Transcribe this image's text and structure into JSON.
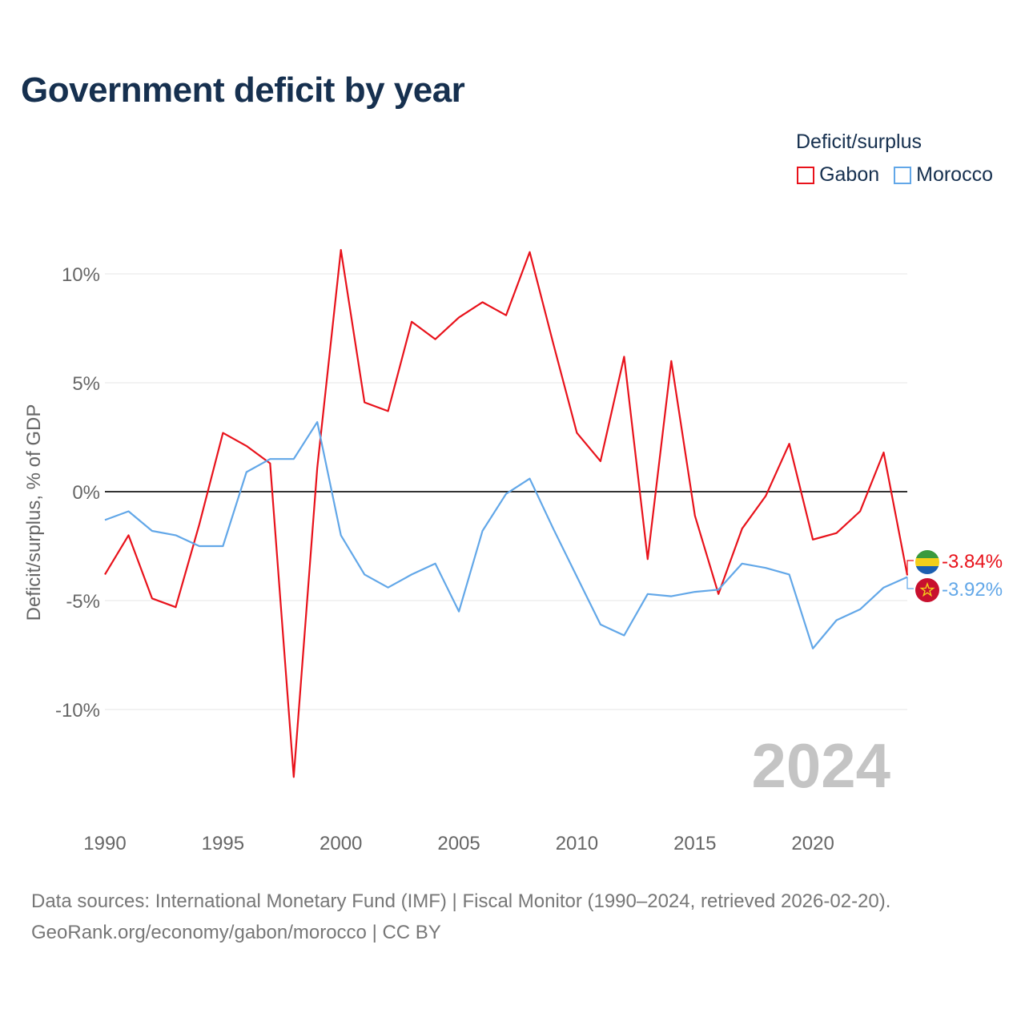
{
  "title": "Government deficit by year",
  "legend": {
    "title": "Deficit/surplus",
    "items": [
      {
        "label": "Gabon",
        "color": "#e8121b"
      },
      {
        "label": "Morocco",
        "color": "#62a7e8"
      }
    ]
  },
  "chart_data": {
    "type": "line",
    "title": "Government deficit by year",
    "xlabel": "",
    "ylabel": "Deficit/surplus, % of GDP",
    "xlim": [
      1990,
      2024
    ],
    "ylim": [
      -15,
      11
    ],
    "y_ticks": [
      10,
      5,
      0,
      -5,
      -10
    ],
    "y_tick_labels": [
      "10%",
      "5%",
      "0%",
      "-5%",
      "-10%"
    ],
    "x_ticks": [
      1990,
      1995,
      2000,
      2005,
      2010,
      2015,
      2020
    ],
    "x_tick_labels": [
      "1990",
      "1995",
      "2000",
      "2005",
      "2010",
      "2015",
      "2020"
    ],
    "zero_line": true,
    "grid": true,
    "year_watermark": "2024",
    "x": [
      1990,
      1991,
      1992,
      1993,
      1994,
      1995,
      1996,
      1997,
      1998,
      1999,
      2000,
      2001,
      2002,
      2003,
      2004,
      2005,
      2006,
      2007,
      2008,
      2009,
      2010,
      2011,
      2012,
      2013,
      2014,
      2015,
      2016,
      2017,
      2018,
      2019,
      2020,
      2021,
      2022,
      2023,
      2024
    ],
    "series": [
      {
        "name": "Gabon",
        "color": "#e8121b",
        "end_label": "-3.84%",
        "values": [
          -3.8,
          -2.0,
          -4.9,
          -5.3,
          -1.5,
          2.7,
          2.1,
          1.3,
          -13.1,
          1.1,
          11.1,
          4.1,
          3.7,
          7.8,
          7.0,
          8.0,
          8.7,
          8.1,
          11.0,
          6.8,
          2.7,
          1.4,
          6.2,
          -3.1,
          6.0,
          -1.1,
          -4.7,
          -1.7,
          -0.2,
          2.2,
          -2.2,
          -1.9,
          -0.9,
          1.8,
          -3.84
        ]
      },
      {
        "name": "Morocco",
        "color": "#62a7e8",
        "end_label": "-3.92%",
        "values": [
          -1.3,
          -0.9,
          -1.8,
          -2.0,
          -2.5,
          -2.5,
          0.9,
          1.5,
          1.5,
          3.2,
          -2.0,
          -3.8,
          -4.4,
          -3.8,
          -3.3,
          -5.5,
          -1.8,
          -0.1,
          0.6,
          -1.7,
          -3.9,
          -6.1,
          -6.6,
          -4.7,
          -4.8,
          -4.6,
          -4.5,
          -3.3,
          -3.5,
          -3.8,
          -7.2,
          -5.9,
          -5.4,
          -4.4,
          -3.92
        ]
      }
    ]
  },
  "source": {
    "line1": "Data sources: International Monetary Fund (IMF) | Fiscal Monitor (1990–2024, retrieved 2026-02-20).",
    "line2": "GeoRank.org/economy/gabon/morocco | CC BY"
  },
  "flags": [
    {
      "name": "gabon-flag",
      "colors": [
        "#3a9a3e",
        "#f4cf1a",
        "#1c5fb0"
      ]
    },
    {
      "name": "morocco-flag",
      "colors": [
        "#c8102e",
        "#f4cf1a"
      ]
    }
  ]
}
